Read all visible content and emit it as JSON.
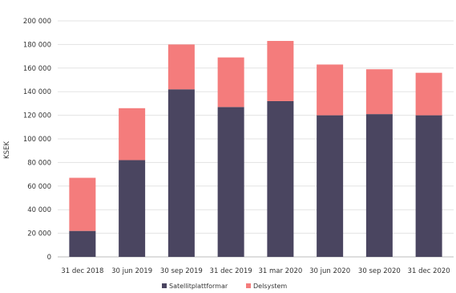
{
  "chart_data": {
    "type": "bar",
    "stacked": true,
    "categories": [
      "31 dec 2018",
      "30 jun 2019",
      "30 sep 2019",
      "31 dec 2019",
      "31 mar 2020",
      "30 jun 2020",
      "30 sep 2020",
      "31 dec 2020"
    ],
    "series": [
      {
        "name": "Satellitplattformar",
        "color": "#4a4560",
        "values": [
          22000,
          82000,
          142000,
          127000,
          132000,
          120000,
          121000,
          120000
        ]
      },
      {
        "name": "Delsystem",
        "color": "#f47c7c",
        "values": [
          45000,
          44000,
          38000,
          42000,
          51000,
          43000,
          38000,
          36000
        ]
      }
    ],
    "ylabel": "KSEK",
    "xlabel": "",
    "ylim": [
      0,
      200000
    ],
    "yticks": [
      0,
      20000,
      40000,
      60000,
      80000,
      100000,
      120000,
      140000,
      160000,
      180000,
      200000
    ],
    "ytick_labels": [
      "0",
      "20 000",
      "40 000",
      "60 000",
      "80 000",
      "100 000",
      "120 000",
      "140 000",
      "160 000",
      "180 000",
      "200 000"
    ],
    "grid": true,
    "legend_position": "bottom-center"
  }
}
